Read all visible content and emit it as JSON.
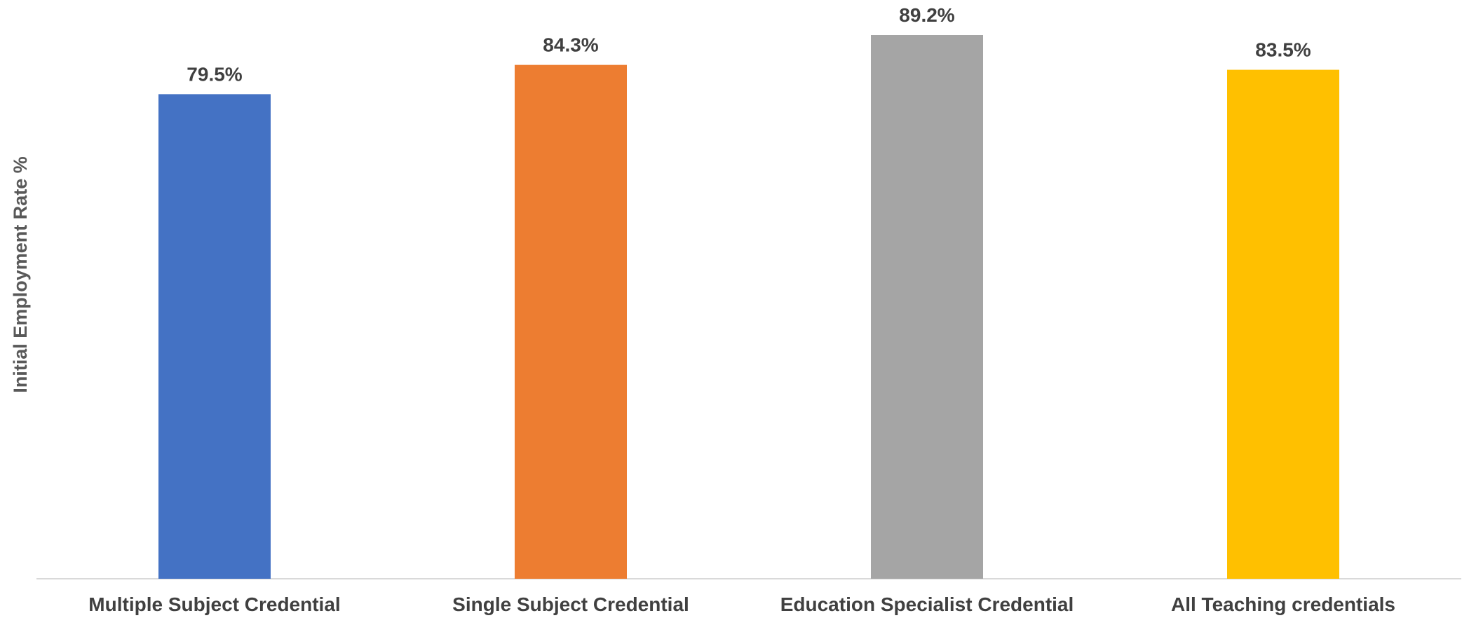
{
  "chart_data": {
    "type": "bar",
    "title": "",
    "xlabel": "",
    "ylabel": "Initial Employment Rate %",
    "categories": [
      "Multiple Subject Credential",
      "Single Subject Credential",
      "Education Specialist Credential",
      "All Teaching credentials"
    ],
    "values": [
      79.5,
      84.3,
      89.2,
      83.5
    ],
    "data_labels": [
      "79.5%",
      "84.3%",
      "89.2%",
      "83.5%"
    ],
    "colors": [
      "#4472C4",
      "#ED7D31",
      "#A5A5A5",
      "#FFC000"
    ],
    "ylim": [
      0,
      89.2
    ],
    "grid": false,
    "legend": "none"
  }
}
